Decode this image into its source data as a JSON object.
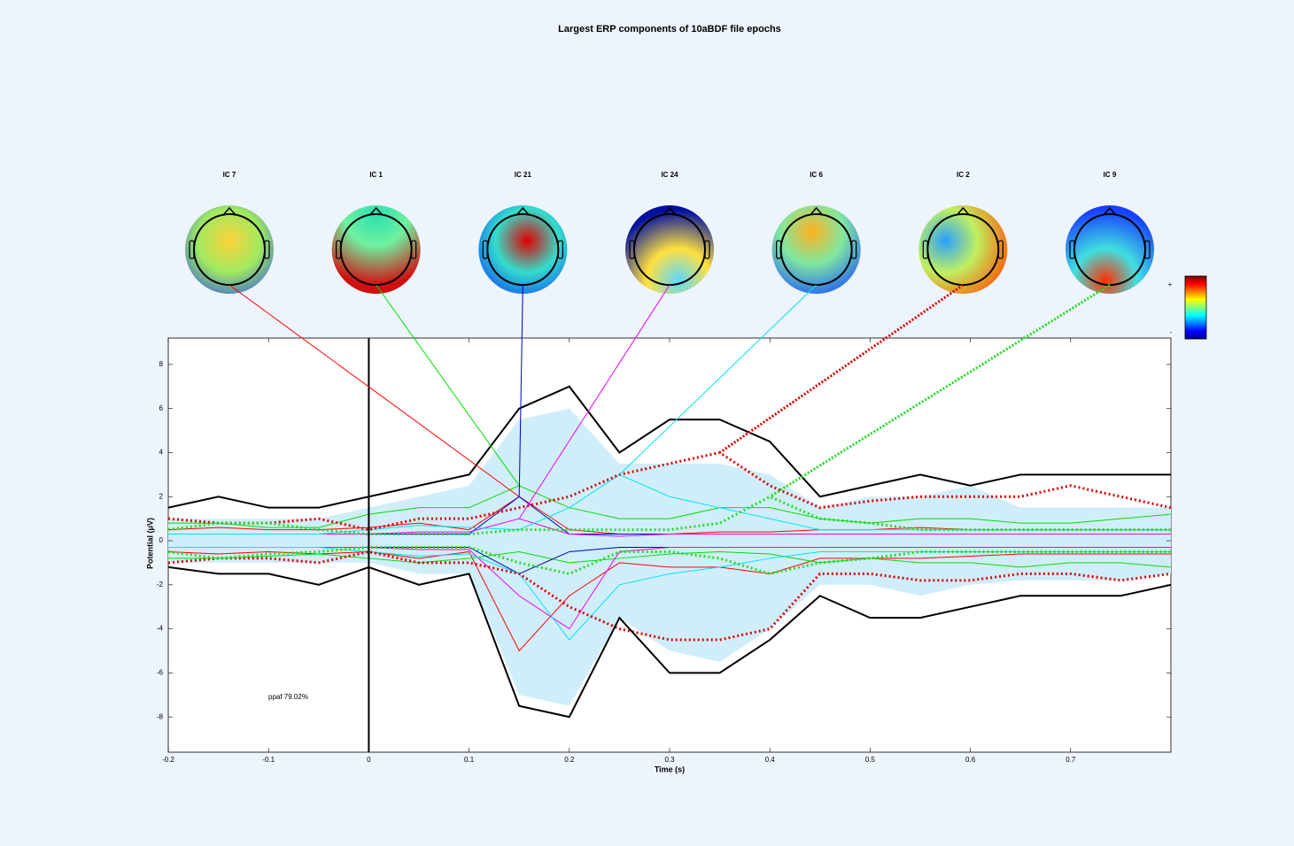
{
  "chart_data": {
    "type": "envelope",
    "title": "Largest ERP components of 10aBDF file epochs",
    "xlabel": "Time (s)",
    "ylabel": "Potential (μV)",
    "annotation": "ppaf 79.02%",
    "colorbar_labels": [
      "+",
      "-"
    ],
    "xlim": [
      -0.2,
      0.8
    ],
    "ylim": [
      -9.6,
      9.2
    ],
    "xticks": [
      -0.2,
      -0.1,
      0,
      0.1,
      0.2,
      0.3,
      0.4,
      0.5,
      0.6,
      0.7
    ],
    "yticks": [
      -8,
      -6,
      -4,
      -2,
      0,
      2,
      4,
      6,
      8
    ],
    "x": [
      -0.2,
      -0.15,
      -0.1,
      -0.05,
      0,
      0.05,
      0.1,
      0.15,
      0.2,
      0.25,
      0.3,
      0.35,
      0.4,
      0.45,
      0.5,
      0.55,
      0.6,
      0.65,
      0.7,
      0.75,
      0.8
    ],
    "data_envelope": {
      "color": "#000000",
      "max": [
        1.5,
        2.0,
        1.5,
        1.5,
        2.0,
        2.5,
        3.0,
        6.0,
        7.0,
        4.0,
        5.5,
        5.5,
        4.5,
        2.0,
        2.5,
        3.0,
        2.5,
        3.0,
        3.0,
        3.0,
        3.0
      ],
      "min": [
        -1.2,
        -1.5,
        -1.5,
        -2.0,
        -1.2,
        -2.0,
        -1.5,
        -7.5,
        -8.0,
        -3.5,
        -6.0,
        -6.0,
        -4.5,
        -2.5,
        -3.5,
        -3.5,
        -3.0,
        -2.5,
        -2.5,
        -2.5,
        -2.0
      ]
    },
    "component_sum": {
      "color": "#d0eefa",
      "max": [
        1.0,
        1.0,
        1.0,
        1.0,
        1.5,
        2.0,
        2.5,
        5.5,
        6.0,
        3.5,
        3.5,
        3.5,
        3.0,
        1.5,
        2.0,
        2.0,
        2.5,
        1.5,
        1.5,
        1.5,
        1.5
      ],
      "min": [
        -1.0,
        -1.0,
        -1.0,
        -1.0,
        -1.0,
        -1.5,
        -1.5,
        -7.0,
        -7.5,
        -3.5,
        -5.0,
        -5.5,
        -4.0,
        -2.0,
        -2.0,
        -2.5,
        -2.0,
        -1.8,
        -1.8,
        -1.8,
        -1.5
      ]
    },
    "components": [
      {
        "name": "IC 7",
        "color": "#ff0000",
        "dotted": false,
        "max": [
          0.5,
          0.6,
          0.5,
          0.5,
          0.6,
          0.8,
          0.5,
          2.0,
          0.5,
          0.3,
          0.3,
          0.4,
          0.4,
          0.5,
          0.5,
          0.6,
          0.5,
          0.5,
          0.5,
          0.5,
          0.5
        ],
        "min": [
          -0.5,
          -0.6,
          -0.5,
          -0.6,
          -0.5,
          -0.8,
          -0.5,
          -5.0,
          -2.5,
          -1.0,
          -1.2,
          -1.2,
          -1.5,
          -0.8,
          -0.8,
          -0.8,
          -0.7,
          -0.6,
          -0.6,
          -0.6,
          -0.6
        ]
      },
      {
        "name": "IC 1",
        "color": "#00dd00",
        "dotted": false,
        "max": [
          0.8,
          0.8,
          0.6,
          0.6,
          1.2,
          1.5,
          1.5,
          2.5,
          1.5,
          1.0,
          1.0,
          1.5,
          1.5,
          1.0,
          0.8,
          1.0,
          1.0,
          0.8,
          0.8,
          1.0,
          1.2
        ],
        "min": [
          -0.8,
          -0.8,
          -0.7,
          -0.6,
          -0.8,
          -1.0,
          -0.8,
          -0.5,
          -1.0,
          -0.8,
          -0.6,
          -0.5,
          -0.6,
          -1.0,
          -0.8,
          -1.0,
          -1.0,
          -1.2,
          -1.0,
          -1.0,
          -1.2
        ]
      },
      {
        "name": "IC 21",
        "color": "#0000cc",
        "dotted": false,
        "max": [
          0.3,
          0.3,
          0.3,
          0.3,
          0.3,
          0.3,
          0.3,
          2.0,
          0.3,
          0.3,
          0.3,
          0.3,
          0.3,
          0.3,
          0.3,
          0.3,
          0.3,
          0.3,
          0.3,
          0.3,
          0.3
        ],
        "min": [
          -0.3,
          -0.3,
          -0.3,
          -0.3,
          -0.3,
          -0.3,
          -0.3,
          -1.5,
          -0.5,
          -0.3,
          -0.3,
          -0.3,
          -0.3,
          -0.3,
          -0.3,
          -0.3,
          -0.3,
          -0.3,
          -0.3,
          -0.3,
          -0.3
        ]
      },
      {
        "name": "IC 24",
        "color": "#ee00ee",
        "dotted": false,
        "max": [
          0.3,
          0.3,
          0.3,
          0.3,
          0.3,
          0.4,
          0.4,
          1.0,
          0.3,
          0.2,
          0.3,
          0.3,
          0.3,
          0.3,
          0.3,
          0.3,
          0.3,
          0.3,
          0.3,
          0.3,
          0.3
        ],
        "min": [
          -0.3,
          -0.3,
          -0.3,
          -0.3,
          -0.3,
          -0.4,
          -0.4,
          -2.5,
          -4.0,
          -0.5,
          -0.3,
          -0.3,
          -0.3,
          -0.3,
          -0.3,
          -0.3,
          -0.3,
          -0.3,
          -0.3,
          -0.3,
          -0.3
        ]
      },
      {
        "name": "IC 6",
        "color": "#00e5ee",
        "dotted": false,
        "max": [
          0.3,
          0.3,
          0.3,
          0.3,
          0.5,
          0.7,
          0.6,
          0.5,
          1.5,
          3.0,
          2.0,
          1.5,
          1.0,
          0.5,
          0.5,
          0.5,
          0.5,
          0.5,
          0.5,
          0.5,
          0.5
        ],
        "min": [
          -0.3,
          -0.3,
          -0.3,
          -0.3,
          -0.5,
          -0.7,
          -0.6,
          -1.5,
          -4.5,
          -2.0,
          -1.5,
          -1.2,
          -0.8,
          -0.5,
          -0.5,
          -0.5,
          -0.5,
          -0.5,
          -0.5,
          -0.5,
          -0.5
        ]
      },
      {
        "name": "IC 2",
        "color": "#dd0000",
        "dotted": true,
        "max": [
          1.0,
          0.8,
          0.8,
          1.0,
          0.5,
          1.0,
          1.0,
          1.5,
          2.0,
          3.0,
          3.5,
          4.0,
          2.5,
          1.5,
          1.8,
          2.0,
          2.0,
          2.0,
          2.5,
          2.0,
          1.5
        ],
        "min": [
          -1.0,
          -0.8,
          -0.8,
          -1.0,
          -0.5,
          -1.0,
          -1.0,
          -1.5,
          -3.0,
          -4.0,
          -4.5,
          -4.5,
          -4.0,
          -1.5,
          -1.5,
          -1.8,
          -1.8,
          -1.5,
          -1.5,
          -1.8,
          -1.5
        ]
      },
      {
        "name": "IC 9",
        "color": "#22dd22",
        "dotted": true,
        "max": [
          0.5,
          0.8,
          0.8,
          0.5,
          0.3,
          0.3,
          0.3,
          0.5,
          0.5,
          0.5,
          0.5,
          0.8,
          2.0,
          1.0,
          0.8,
          0.5,
          0.5,
          0.5,
          0.5,
          0.5,
          0.5
        ],
        "min": [
          -0.5,
          -0.8,
          -0.6,
          -0.5,
          -0.3,
          -0.3,
          -0.3,
          -1.0,
          -1.5,
          -0.5,
          -0.5,
          -0.8,
          -1.5,
          -1.0,
          -0.8,
          -0.5,
          -0.5,
          -0.5,
          -0.5,
          -0.5,
          -0.5
        ]
      }
    ]
  }
}
